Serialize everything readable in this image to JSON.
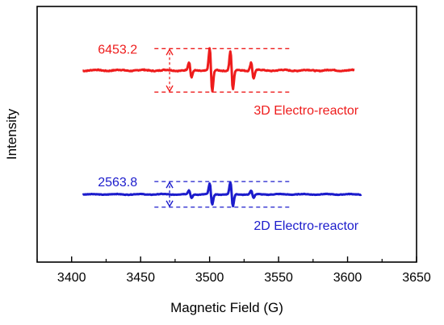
{
  "chart_data": {
    "type": "line",
    "title": "",
    "xlabel": "Magnetic Field (G)",
    "ylabel": "Intensity",
    "xlim": [
      3375,
      3650
    ],
    "xticks": [
      3400,
      3450,
      3500,
      3550,
      3600,
      3650
    ],
    "yticks_shown": false,
    "grid": false,
    "series": [
      {
        "name": "3D Electro-reactor",
        "color": "#ee1c1c",
        "x_range": [
          3408,
          3605
        ],
        "baseline": 0.75,
        "amplitude": 0.085,
        "peaks": [
          {
            "x": 3486,
            "height": 0.35
          },
          {
            "x": 3501,
            "height": 1.0
          },
          {
            "x": 3516,
            "height": 0.88
          },
          {
            "x": 3531,
            "height": 0.38
          }
        ],
        "annotation": {
          "value": "6453.2",
          "top": 0.835,
          "bottom": 0.665
        }
      },
      {
        "name": "2D Electro-reactor",
        "color": "#1c1ccc",
        "x_range": [
          3408,
          3610
        ],
        "baseline": 0.265,
        "amplitude": 0.05,
        "peaks": [
          {
            "x": 3486,
            "height": 0.3
          },
          {
            "x": 3501,
            "height": 0.82
          },
          {
            "x": 3516,
            "height": 0.95
          },
          {
            "x": 3531,
            "height": 0.3
          }
        ],
        "annotation": {
          "value": "2563.8",
          "top": 0.315,
          "bottom": 0.215
        }
      }
    ],
    "annotation_lines": {
      "x_from": 3460,
      "x_to": 3560,
      "arrow_x": 3471
    }
  }
}
